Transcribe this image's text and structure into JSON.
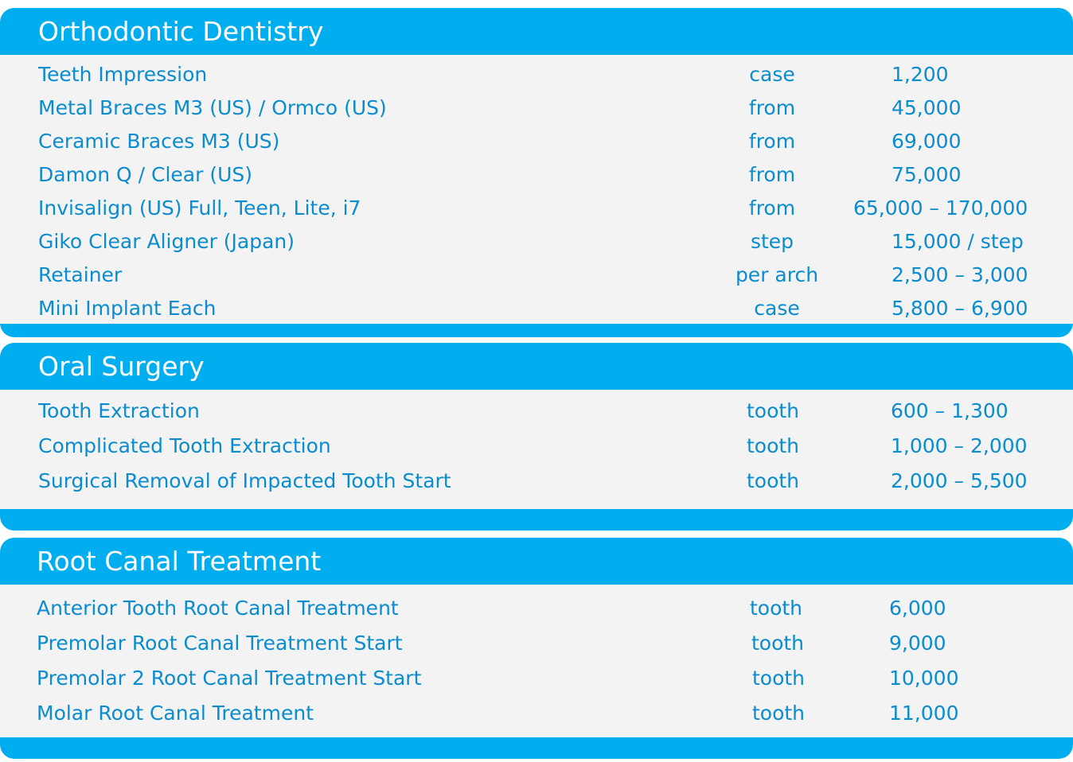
{
  "sections": [
    {
      "title": "Orthodontic Dentistry",
      "rows": [
        {
          "name": "Teeth Impression",
          "unit": "case",
          "price": "1,200"
        },
        {
          "name": "Metal Braces M3 (US) / Ormco (US)",
          "unit": "from",
          "price": "45,000"
        },
        {
          "name": "Ceramic Braces M3 (US)",
          "unit": "from",
          "price": "69,000"
        },
        {
          "name": "Damon Q / Clear (US)",
          "unit": "from",
          "price": "75,000"
        },
        {
          "name": "Invisalign (US) Full, Teen, Lite, i7",
          "unit": "from",
          "price": "65,000 – 170,000"
        },
        {
          "name": "Giko Clear Aligner (Japan)",
          "unit": "step",
          "price": "15,000 / step"
        },
        {
          "name": "Retainer",
          "unit": "per arch",
          "price": "2,500 – 3,000"
        },
        {
          "name": "Mini Implant Each",
          "unit": "case",
          "price": "5,800 – 6,900"
        }
      ]
    },
    {
      "title": "Oral Surgery",
      "rows": [
        {
          "name": "Tooth  Extraction",
          "unit": "tooth",
          "price": "600 – 1,300"
        },
        {
          "name": "Complicated Tooth  Extraction",
          "unit": "tooth",
          "price": "1,000 – 2,000"
        },
        {
          "name": "Surgical Removal of  Impacted Tooth Start",
          "unit": "tooth",
          "price": "2,000 – 5,500"
        }
      ]
    },
    {
      "title": "Root Canal Treatment",
      "rows": [
        {
          "name": "Anterior Tooth Root Canal Treatment",
          "unit": "tooth",
          "price": "6,000"
        },
        {
          "name": "Premolar Root Canal Treatment Start",
          "unit": "tooth",
          "price": "9,000"
        },
        {
          "name": "Premolar 2 Root Canal Treatment Start",
          "unit": "tooth",
          "price": "10,000"
        },
        {
          "name": "Molar Root Canal Treatment",
          "unit": "tooth",
          "price": "11,000"
        }
      ]
    }
  ],
  "colors": {
    "header": "#00adef",
    "body": "#f3f3f3",
    "text": "#0a8ccf",
    "title": "#ffffff"
  }
}
